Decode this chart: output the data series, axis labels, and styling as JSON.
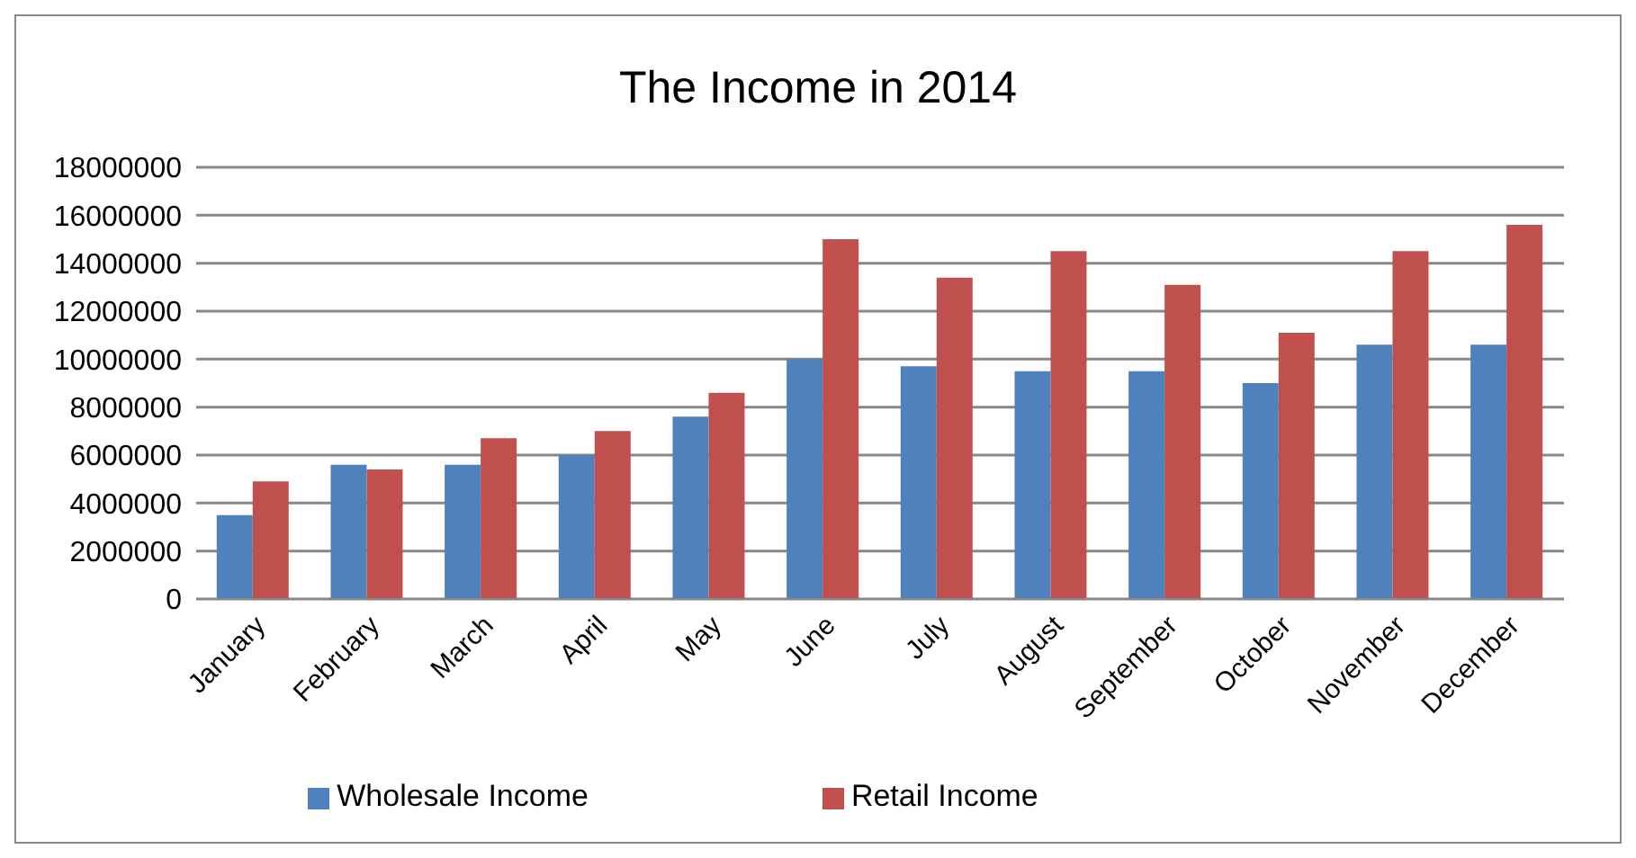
{
  "chart_data": {
    "type": "bar",
    "title": "The Income in 2014",
    "categories": [
      "January",
      "February",
      "March",
      "April",
      "May",
      "June",
      "July",
      "August",
      "September",
      "October",
      "November",
      "December"
    ],
    "series": [
      {
        "name": "Wholesale Income",
        "color": "#4f81bd",
        "values": [
          3500000,
          5600000,
          5600000,
          6000000,
          7600000,
          10000000,
          9700000,
          9500000,
          9500000,
          9000000,
          10600000,
          10600000
        ]
      },
      {
        "name": "Retail Income",
        "color": "#c0504d",
        "values": [
          4900000,
          5400000,
          6700000,
          7000000,
          8600000,
          15000000,
          13400000,
          14500000,
          13100000,
          11100000,
          14500000,
          15600000
        ]
      }
    ],
    "ylim": [
      0,
      18000000
    ],
    "yticks": [
      0,
      2000000,
      4000000,
      6000000,
      8000000,
      10000000,
      12000000,
      14000000,
      16000000,
      18000000
    ],
    "grid": "y",
    "legend": "bottom"
  }
}
